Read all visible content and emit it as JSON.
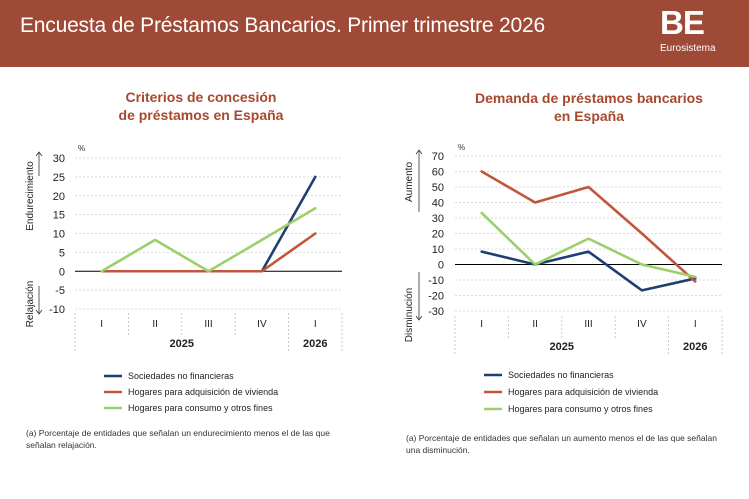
{
  "header": {
    "title": "Encuesta de Préstamos Bancarios. Primer trimestre 2026",
    "logo": "BE",
    "logo_sub": "Eurosistema"
  },
  "colors": {
    "header_bg": "#9e4a36",
    "title": "#a8482e",
    "sociedades": "#1f3f73",
    "vivienda": "#c2563a",
    "consumo": "#9ccf6b"
  },
  "chart_data": [
    {
      "type": "line",
      "title_lines": [
        "Criterios de concesión",
        "de préstamos en España"
      ],
      "unit": "%",
      "ylim": [
        -10,
        30
      ],
      "yticks": [
        -10,
        -5,
        0,
        5,
        10,
        15,
        20,
        25,
        30
      ],
      "y_label_top": "Endurecimiento",
      "y_label_bottom": "Relajación",
      "categories": [
        "I",
        "II",
        "III",
        "IV",
        "I"
      ],
      "year_labels": [
        "2025",
        "2026"
      ],
      "series": [
        {
          "name": "Sociedades no financieras",
          "values": [
            0,
            0,
            0,
            0,
            25
          ]
        },
        {
          "name": "Hogares para adquisición de vivienda",
          "values": [
            0,
            0,
            0,
            0,
            10
          ]
        },
        {
          "name": "Hogares para consumo y otros fines",
          "values": [
            0,
            8.3,
            0,
            8.3,
            16.7
          ]
        }
      ],
      "footnote": "(a) Porcentaje de entidades que señalan un endurecimiento menos el de las que señalan relajación."
    },
    {
      "type": "line",
      "title_lines": [
        "Demanda de préstamos bancarios",
        "en España"
      ],
      "unit": "%",
      "ylim": [
        -30,
        70
      ],
      "yticks": [
        -30,
        -20,
        -10,
        0,
        10,
        20,
        30,
        40,
        50,
        60,
        70
      ],
      "y_label_top": "Aumento",
      "y_label_bottom": "Disminución",
      "categories": [
        "I",
        "II",
        "III",
        "IV",
        "I"
      ],
      "year_labels": [
        "2025",
        "2026"
      ],
      "series": [
        {
          "name": "Sociedades no financieras",
          "values": [
            8.3,
            0,
            8.3,
            -16.7,
            -9
          ]
        },
        {
          "name": "Hogares para adquisición de vivienda",
          "values": [
            60,
            40,
            50,
            20,
            -11
          ]
        },
        {
          "name": "Hogares para consumo y otros fines",
          "values": [
            33.3,
            0,
            16.7,
            0,
            -8
          ]
        }
      ],
      "footnote": "(a) Porcentaje de entidades que señalan un aumento menos el de las que señalan una disminución."
    }
  ]
}
